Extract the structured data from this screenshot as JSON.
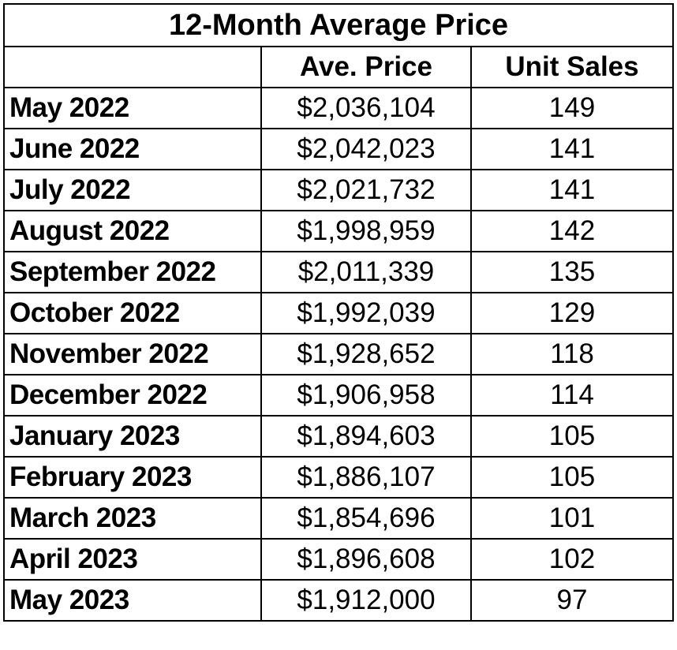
{
  "table": {
    "title": "12-Month Average Price",
    "headers": [
      "",
      "Ave. Price",
      "Unit Sales"
    ],
    "rows": [
      {
        "month": "May 2022",
        "price": "$2,036,104",
        "units": "149"
      },
      {
        "month": "June 2022",
        "price": "$2,042,023",
        "units": "141"
      },
      {
        "month": "July 2022",
        "price": "$2,021,732",
        "units": "141"
      },
      {
        "month": "August 2022",
        "price": "$1,998,959",
        "units": "142"
      },
      {
        "month": "September 2022",
        "price": "$2,011,339",
        "units": "135"
      },
      {
        "month": "October 2022",
        "price": "$1,992,039",
        "units": "129"
      },
      {
        "month": "November 2022",
        "price": "$1,928,652",
        "units": "118"
      },
      {
        "month": "December 2022",
        "price": "$1,906,958",
        "units": "114"
      },
      {
        "month": "January 2023",
        "price": "$1,894,603",
        "units": "105"
      },
      {
        "month": "February 2023",
        "price": "$1,886,107",
        "units": "105"
      },
      {
        "month": "March 2023",
        "price": "$1,854,696",
        "units": "101"
      },
      {
        "month": "April 2023",
        "price": "$1,896,608",
        "units": "102"
      },
      {
        "month": "May 2023",
        "price": "$1,912,000",
        "units": "97"
      }
    ]
  }
}
